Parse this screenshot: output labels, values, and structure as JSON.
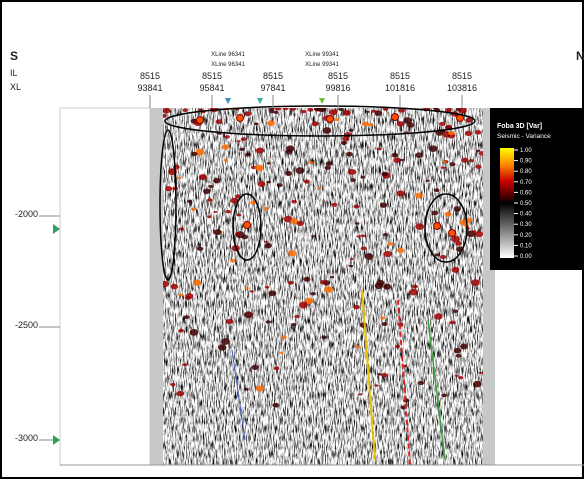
{
  "header": {
    "left_label": "S",
    "right_label": "N",
    "il_label": "IL",
    "xl_label": "XL"
  },
  "columns": [
    {
      "il": "8515",
      "xl": "93841"
    },
    {
      "il": "8515",
      "xl": "95841"
    },
    {
      "il": "8515",
      "xl": "97841"
    },
    {
      "il": "8515",
      "xl": "99816"
    },
    {
      "il": "8515",
      "xl": "101816"
    },
    {
      "il": "8515",
      "xl": "103816"
    }
  ],
  "markers": [
    {
      "line1": "XLine 96341",
      "line2": "XLine 96341"
    },
    {
      "line1": "XLine 99341",
      "line2": "XLine 99341"
    }
  ],
  "depth_labels": [
    "-2000",
    "-2500",
    "-3000"
  ],
  "legend": {
    "title": "Foba 3D [Var]",
    "subtitle": "Seismic - Variance",
    "ticks": [
      "1.00",
      "0.90",
      "0.80",
      "0.70",
      "0.60",
      "0.50",
      "0.40",
      "0.30",
      "0.20",
      "0.10",
      "0.00"
    ]
  }
}
